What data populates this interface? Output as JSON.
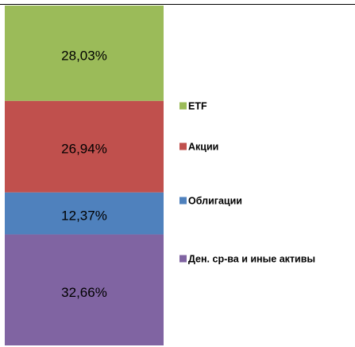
{
  "chart_data": {
    "type": "stacked_bar",
    "ylim": [
      0,
      100
    ],
    "series": [
      {
        "name": "Ден. ср-ва и иные активы",
        "color": "#8064a2",
        "values": [
          32.66
        ],
        "value_labels": [
          "32,66%"
        ]
      },
      {
        "name": "Облигации",
        "color": "#4f81bd",
        "values": [
          12.37
        ],
        "value_labels": [
          "12,37%"
        ]
      },
      {
        "name": "Акции",
        "color": "#c0504d",
        "values": [
          26.94
        ],
        "value_labels": [
          "26,94%"
        ]
      },
      {
        "name": "ETF",
        "color": "#9bbb59",
        "values": [
          28.03
        ],
        "value_labels": [
          "28,03%"
        ]
      }
    ]
  }
}
